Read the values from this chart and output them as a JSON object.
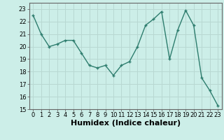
{
  "x": [
    0,
    1,
    2,
    3,
    4,
    5,
    6,
    7,
    8,
    9,
    10,
    11,
    12,
    13,
    14,
    15,
    16,
    17,
    18,
    19,
    20,
    21,
    22,
    23
  ],
  "y": [
    22.5,
    21.0,
    20.0,
    20.2,
    20.5,
    20.5,
    19.5,
    18.5,
    18.3,
    18.5,
    17.7,
    18.5,
    18.8,
    20.0,
    21.7,
    22.2,
    22.8,
    19.0,
    21.3,
    22.9,
    21.7,
    17.5,
    16.5,
    15.3
  ],
  "xlabel": "Humidex (Indice chaleur)",
  "ylim": [
    15,
    23.5
  ],
  "xlim": [
    -0.5,
    23.5
  ],
  "yticks": [
    15,
    16,
    17,
    18,
    19,
    20,
    21,
    22,
    23
  ],
  "xticks": [
    0,
    1,
    2,
    3,
    4,
    5,
    6,
    7,
    8,
    9,
    10,
    11,
    12,
    13,
    14,
    15,
    16,
    17,
    18,
    19,
    20,
    21,
    22,
    23
  ],
  "line_color": "#2e7d6e",
  "marker": "+",
  "bg_color": "#cceee8",
  "grid_color": "#b8d8d2",
  "tick_fontsize": 6,
  "xlabel_fontsize": 8
}
